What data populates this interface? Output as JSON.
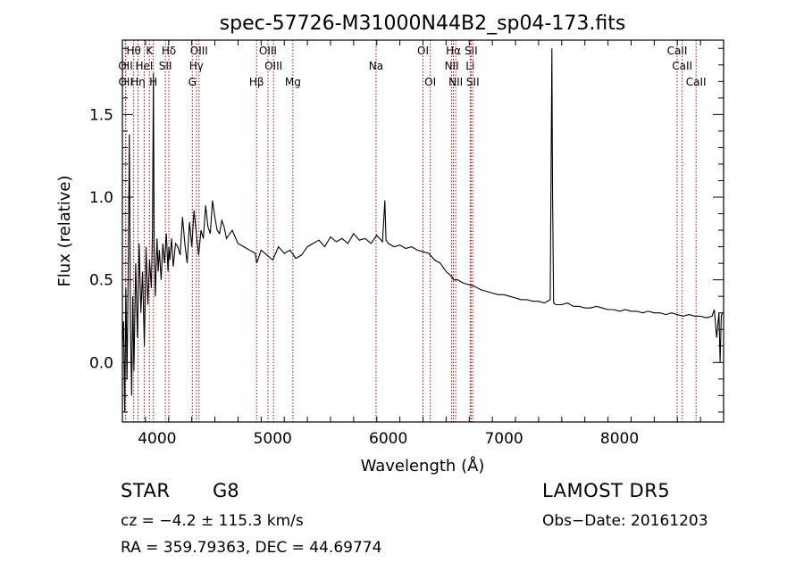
{
  "chart_data": {
    "type": "line",
    "title": "spec-57726-M31000N44B2_sp04-173.fits",
    "xlabel": "Wavelength (Å)",
    "ylabel": "Flux (relative)",
    "xlim": [
      3700,
      8900
    ],
    "ylim": [
      -0.36,
      1.95
    ],
    "xticks": [
      4000,
      5000,
      6000,
      7000,
      8000
    ],
    "yticks": [
      0.0,
      0.5,
      1.0,
      1.5
    ],
    "ytick_labels": [
      "0.0",
      "0.5",
      "1.0",
      "1.5"
    ],
    "grid": false,
    "series": [
      {
        "x": [
          3700,
          3710,
          3720,
          3730,
          3740,
          3750,
          3760,
          3770,
          3780,
          3790,
          3800,
          3815,
          3830,
          3845,
          3860,
          3875,
          3890,
          3905,
          3920,
          3935,
          3950,
          3960,
          3968,
          3975,
          3985,
          3995,
          4000,
          4010,
          4020,
          4035,
          4050,
          4065,
          4080,
          4095,
          4102,
          4110,
          4125,
          4140,
          4160,
          4180,
          4200,
          4220,
          4240,
          4260,
          4280,
          4300,
          4320,
          4340,
          4360,
          4380,
          4400,
          4420,
          4440,
          4460,
          4480,
          4500,
          4520,
          4540,
          4560,
          4580,
          4600,
          4650,
          4700,
          4750,
          4800,
          4850,
          4861,
          4900,
          4950,
          5000,
          5050,
          5100,
          5150,
          5200,
          5250,
          5300,
          5350,
          5400,
          5450,
          5500,
          5550,
          5600,
          5650,
          5700,
          5750,
          5800,
          5850,
          5900,
          5950,
          5970,
          5980,
          6000,
          6050,
          6100,
          6150,
          6200,
          6250,
          6300,
          6350,
          6400,
          6450,
          6500,
          6550,
          6563,
          6600,
          6650,
          6700,
          6750,
          6800,
          6850,
          6900,
          6950,
          7000,
          7050,
          7100,
          7150,
          7200,
          7250,
          7300,
          7350,
          7400,
          7415,
          7420,
          7430,
          7450,
          7500,
          7550,
          7600,
          7650,
          7700,
          7750,
          7800,
          7850,
          7900,
          7950,
          8000,
          8050,
          8100,
          8150,
          8200,
          8250,
          8300,
          8350,
          8400,
          8450,
          8500,
          8550,
          8600,
          8650,
          8700,
          8750,
          8800,
          8820,
          8840,
          8860,
          8870,
          8880,
          8890
        ],
        "y": [
          0.1,
          0.25,
          -0.3,
          0.45,
          -0.1,
          0.55,
          1.38,
          0.2,
          -0.2,
          0.4,
          -0.05,
          0.6,
          0.15,
          0.72,
          0.3,
          0.55,
          0.1,
          0.7,
          0.35,
          0.62,
          0.45,
          0.8,
          1.75,
          0.7,
          0.4,
          0.65,
          0.75,
          0.55,
          0.68,
          0.5,
          0.72,
          0.6,
          0.78,
          0.55,
          0.7,
          0.62,
          0.75,
          0.58,
          0.72,
          0.7,
          0.65,
          0.88,
          0.72,
          0.6,
          0.85,
          0.7,
          0.92,
          0.78,
          0.65,
          0.8,
          0.75,
          0.95,
          0.82,
          0.78,
          0.98,
          0.88,
          0.8,
          0.78,
          0.86,
          0.82,
          0.75,
          0.8,
          0.72,
          0.7,
          0.68,
          0.66,
          0.6,
          0.68,
          0.65,
          0.62,
          0.7,
          0.66,
          0.68,
          0.63,
          0.65,
          0.7,
          0.72,
          0.74,
          0.7,
          0.76,
          0.73,
          0.75,
          0.72,
          0.78,
          0.74,
          0.75,
          0.72,
          0.77,
          0.73,
          0.98,
          0.74,
          0.72,
          0.7,
          0.71,
          0.69,
          0.7,
          0.68,
          0.67,
          0.66,
          0.62,
          0.6,
          0.55,
          0.52,
          0.5,
          0.5,
          0.48,
          0.47,
          0.46,
          0.44,
          0.43,
          0.42,
          0.41,
          0.41,
          0.4,
          0.39,
          0.38,
          0.38,
          0.37,
          0.37,
          0.36,
          0.38,
          1.9,
          1.05,
          0.36,
          0.35,
          0.35,
          0.36,
          0.34,
          0.34,
          0.33,
          0.33,
          0.34,
          0.33,
          0.32,
          0.32,
          0.31,
          0.32,
          0.31,
          0.31,
          0.3,
          0.31,
          0.3,
          0.3,
          0.29,
          0.3,
          0.29,
          0.28,
          0.29,
          0.28,
          0.28,
          0.27,
          0.28,
          0.32,
          0.15,
          0.3,
          0.0,
          0.28,
          0.3
        ]
      }
    ],
    "line_markers": [
      {
        "label": "Hθ",
        "x": 3798,
        "row": 1
      },
      {
        "label": "K",
        "x": 3934,
        "row": 1
      },
      {
        "label": "Hδ",
        "x": 4102,
        "row": 1
      },
      {
        "label": "OIII",
        "x": 4363,
        "row": 1
      },
      {
        "label": "OIII",
        "x": 4959,
        "row": 1
      },
      {
        "label": "OI",
        "x": 6300,
        "row": 1
      },
      {
        "label": "Hα",
        "x": 6563,
        "row": 1
      },
      {
        "label": "SII",
        "x": 6716,
        "row": 1
      },
      {
        "label": "CaII",
        "x": 8498,
        "row": 1
      },
      {
        "label": "OII",
        "x": 3727,
        "row": 2
      },
      {
        "label": "HeI",
        "x": 3889,
        "row": 2
      },
      {
        "label": "SII",
        "x": 4072,
        "row": 2
      },
      {
        "label": "Hγ",
        "x": 4340,
        "row": 2
      },
      {
        "label": "OIII",
        "x": 5007,
        "row": 2
      },
      {
        "label": "NII",
        "x": 6548,
        "row": 2
      },
      {
        "label": "Li",
        "x": 6708,
        "row": 2
      },
      {
        "label": "CaII",
        "x": 8542,
        "row": 2
      },
      {
        "label": "OII",
        "x": 3729,
        "row": 3
      },
      {
        "label": "Hη",
        "x": 3835,
        "row": 3
      },
      {
        "label": "H",
        "x": 3968,
        "row": 3
      },
      {
        "label": "G",
        "x": 4305,
        "row": 3
      },
      {
        "label": "Hβ",
        "x": 4861,
        "row": 3
      },
      {
        "label": "Mg",
        "x": 5175,
        "row": 3
      },
      {
        "label": "Na",
        "x": 5894,
        "row": 2
      },
      {
        "label": "OI",
        "x": 6363,
        "row": 3
      },
      {
        "label": "NII",
        "x": 6583,
        "row": 3
      },
      {
        "label": "SII",
        "x": 6731,
        "row": 3
      },
      {
        "label": "CaII",
        "x": 8662,
        "row": 3
      }
    ],
    "line_color": "#000000",
    "marker_color": "#c00000"
  },
  "info": {
    "obj_class": "STAR",
    "obj_subclass": "G8",
    "survey": "LAMOST  DR5",
    "cz": "cz = −4.2 ± 115.3 km/s",
    "obs_date": "Obs−Date: 20161203",
    "radec": "RA = 359.79363, DEC =  44.69774"
  }
}
